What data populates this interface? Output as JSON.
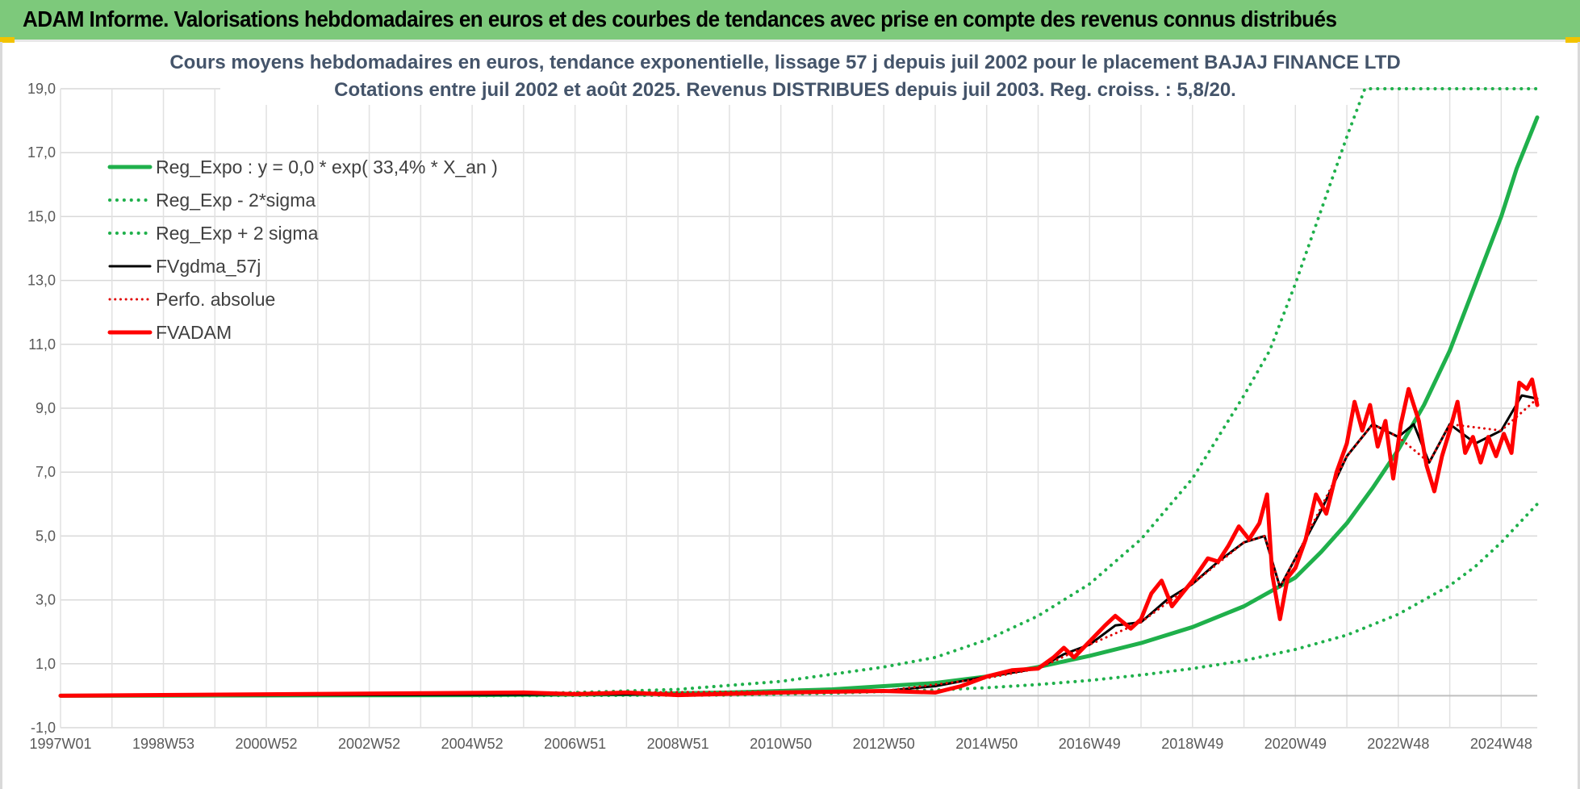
{
  "header": {
    "title": "ADAM Informe. Valorisations hebdomadaires en euros et des courbes de tendances avec prise en compte des revenus connus distribués",
    "background": "#7dc97b"
  },
  "chart_data": {
    "type": "line",
    "title_lines": [
      "Cours moyens hebdomadaires en euros, tendance exponentielle, lissage 57 j depuis juil 2002 pour le placement BAJAJ FINANCE LTD",
      "Cotations entre juil 2002 et août 2025. Revenus DISTRIBUES depuis juil 2003. Reg. croiss. : 5,8/20."
    ],
    "xlabel": "",
    "ylabel": "",
    "ylim": [
      -1,
      19
    ],
    "xlim": [
      1997.0,
      2025.7
    ],
    "y_ticks": [
      "-1,0",
      "1,0",
      "3,0",
      "5,0",
      "7,0",
      "9,0",
      "11,0",
      "13,0",
      "15,0",
      "17,0",
      "19,0"
    ],
    "x_ticks": [
      {
        "label": "1997W01",
        "x": 1997.0
      },
      {
        "label": "1998W53",
        "x": 1999.0
      },
      {
        "label": "2000W52",
        "x": 2001.0
      },
      {
        "label": "2002W52",
        "x": 2003.0
      },
      {
        "label": "2004W52",
        "x": 2005.0
      },
      {
        "label": "2006W51",
        "x": 2007.0
      },
      {
        "label": "2008W51",
        "x": 2009.0
      },
      {
        "label": "2010W50",
        "x": 2011.0
      },
      {
        "label": "2012W50",
        "x": 2013.0
      },
      {
        "label": "2014W50",
        "x": 2015.0
      },
      {
        "label": "2016W49",
        "x": 2017.0
      },
      {
        "label": "2018W49",
        "x": 2019.0
      },
      {
        "label": "2020W49",
        "x": 2021.0
      },
      {
        "label": "2022W48",
        "x": 2023.0
      },
      {
        "label": "2024W48",
        "x": 2025.0
      }
    ],
    "grid": true,
    "legend_position": "top-left",
    "series": [
      {
        "name": "Reg_Expo : y = 0,0 * exp( 33,4% *  X_an )",
        "color": "#1fb04b",
        "style": "solid",
        "width": 5,
        "points": [
          [
            1997.0,
            0
          ],
          [
            2005.0,
            0.02
          ],
          [
            2008.0,
            0.05
          ],
          [
            2010.0,
            0.1
          ],
          [
            2012.0,
            0.2
          ],
          [
            2013.0,
            0.3
          ],
          [
            2014.0,
            0.4
          ],
          [
            2015.0,
            0.6
          ],
          [
            2016.0,
            0.9
          ],
          [
            2017.0,
            1.25
          ],
          [
            2018.0,
            1.65
          ],
          [
            2019.0,
            2.15
          ],
          [
            2020.0,
            2.8
          ],
          [
            2021.0,
            3.7
          ],
          [
            2021.5,
            4.5
          ],
          [
            2022.0,
            5.4
          ],
          [
            2022.5,
            6.5
          ],
          [
            2023.0,
            7.7
          ],
          [
            2023.5,
            9.1
          ],
          [
            2024.0,
            10.8
          ],
          [
            2024.5,
            12.9
          ],
          [
            2025.0,
            15.0
          ],
          [
            2025.3,
            16.5
          ],
          [
            2025.7,
            18.1
          ]
        ]
      },
      {
        "name": "Reg_Exp - 2*sigma",
        "color": "#1fb04b",
        "style": "dotted",
        "width": 4,
        "points": [
          [
            2005.0,
            0
          ],
          [
            2010.0,
            0.02
          ],
          [
            2012.0,
            0.08
          ],
          [
            2014.0,
            0.18
          ],
          [
            2015.0,
            0.25
          ],
          [
            2016.0,
            0.35
          ],
          [
            2017.0,
            0.48
          ],
          [
            2018.0,
            0.65
          ],
          [
            2019.0,
            0.85
          ],
          [
            2020.0,
            1.1
          ],
          [
            2021.0,
            1.45
          ],
          [
            2022.0,
            1.9
          ],
          [
            2023.0,
            2.55
          ],
          [
            2024.0,
            3.45
          ],
          [
            2024.5,
            4.05
          ],
          [
            2025.0,
            4.8
          ],
          [
            2025.7,
            6.0
          ]
        ]
      },
      {
        "name": "Reg_Exp + 2 sigma",
        "color": "#1fb04b",
        "style": "dotted",
        "width": 4,
        "points": [
          [
            2003.0,
            0.03
          ],
          [
            2005.0,
            0.05
          ],
          [
            2007.0,
            0.1
          ],
          [
            2009.0,
            0.2
          ],
          [
            2011.0,
            0.45
          ],
          [
            2013.0,
            0.9
          ],
          [
            2014.0,
            1.2
          ],
          [
            2015.0,
            1.75
          ],
          [
            2016.0,
            2.5
          ],
          [
            2017.0,
            3.5
          ],
          [
            2018.0,
            4.9
          ],
          [
            2019.0,
            6.8
          ],
          [
            2020.0,
            9.4
          ],
          [
            2020.5,
            10.8
          ],
          [
            2021.0,
            12.9
          ],
          [
            2021.5,
            15.2
          ],
          [
            2022.0,
            17.5
          ],
          [
            2022.35,
            19.0
          ],
          [
            2025.7,
            19.0
          ]
        ]
      },
      {
        "name": "FVgdma_57j",
        "color": "#000000",
        "style": "solid",
        "width": 3,
        "points": [
          [
            1997.0,
            0
          ],
          [
            2010.0,
            0.05
          ],
          [
            2013.0,
            0.15
          ],
          [
            2014.0,
            0.3
          ],
          [
            2015.0,
            0.6
          ],
          [
            2016.0,
            0.85
          ],
          [
            2016.5,
            1.3
          ],
          [
            2017.0,
            1.6
          ],
          [
            2017.5,
            2.2
          ],
          [
            2018.0,
            2.3
          ],
          [
            2018.5,
            3.0
          ],
          [
            2019.0,
            3.5
          ],
          [
            2019.5,
            4.2
          ],
          [
            2020.0,
            4.8
          ],
          [
            2020.4,
            5.0
          ],
          [
            2020.7,
            3.4
          ],
          [
            2021.0,
            4.3
          ],
          [
            2021.5,
            5.8
          ],
          [
            2022.0,
            7.5
          ],
          [
            2022.5,
            8.5
          ],
          [
            2023.0,
            8.1
          ],
          [
            2023.3,
            8.5
          ],
          [
            2023.6,
            7.3
          ],
          [
            2024.0,
            8.5
          ],
          [
            2024.5,
            7.9
          ],
          [
            2025.0,
            8.3
          ],
          [
            2025.4,
            9.4
          ],
          [
            2025.7,
            9.3
          ]
        ]
      },
      {
        "name": "Perfo. absolue",
        "color": "#e00000",
        "style": "dotted",
        "width": 3,
        "points": [
          [
            1997.0,
            0
          ],
          [
            2013.0,
            0.15
          ],
          [
            2015.0,
            0.55
          ],
          [
            2016.0,
            0.85
          ],
          [
            2017.0,
            1.6
          ],
          [
            2018.0,
            2.3
          ],
          [
            2019.0,
            3.5
          ],
          [
            2020.0,
            4.8
          ],
          [
            2020.4,
            5.0
          ],
          [
            2020.7,
            3.4
          ],
          [
            2021.0,
            4.3
          ],
          [
            2022.0,
            7.5
          ],
          [
            2022.5,
            8.5
          ],
          [
            2023.0,
            8.1
          ],
          [
            2023.6,
            7.3
          ],
          [
            2024.0,
            8.5
          ],
          [
            2025.0,
            8.3
          ],
          [
            2025.7,
            9.3
          ]
        ]
      },
      {
        "name": "FVADAM",
        "color": "#ff0000",
        "style": "solid",
        "width": 5,
        "points": [
          [
            1997.0,
            0
          ],
          [
            2006.0,
            0.1
          ],
          [
            2007.0,
            0.05
          ],
          [
            2008.0,
            0.1
          ],
          [
            2009.0,
            0.02
          ],
          [
            2011.0,
            0.1
          ],
          [
            2013.0,
            0.15
          ],
          [
            2014.0,
            0.1
          ],
          [
            2014.5,
            0.3
          ],
          [
            2015.0,
            0.6
          ],
          [
            2015.5,
            0.8
          ],
          [
            2016.0,
            0.85
          ],
          [
            2016.3,
            1.2
          ],
          [
            2016.5,
            1.5
          ],
          [
            2016.7,
            1.2
          ],
          [
            2017.0,
            1.7
          ],
          [
            2017.3,
            2.2
          ],
          [
            2017.5,
            2.5
          ],
          [
            2017.8,
            2.1
          ],
          [
            2018.0,
            2.4
          ],
          [
            2018.2,
            3.2
          ],
          [
            2018.4,
            3.6
          ],
          [
            2018.6,
            2.8
          ],
          [
            2018.8,
            3.2
          ],
          [
            2019.0,
            3.6
          ],
          [
            2019.3,
            4.3
          ],
          [
            2019.5,
            4.2
          ],
          [
            2019.7,
            4.7
          ],
          [
            2019.9,
            5.3
          ],
          [
            2020.1,
            4.9
          ],
          [
            2020.3,
            5.4
          ],
          [
            2020.45,
            6.3
          ],
          [
            2020.55,
            3.8
          ],
          [
            2020.7,
            2.4
          ],
          [
            2020.85,
            3.7
          ],
          [
            2021.0,
            4.0
          ],
          [
            2021.2,
            4.9
          ],
          [
            2021.4,
            6.3
          ],
          [
            2021.6,
            5.7
          ],
          [
            2021.8,
            7.0
          ],
          [
            2022.0,
            7.9
          ],
          [
            2022.15,
            9.2
          ],
          [
            2022.3,
            8.3
          ],
          [
            2022.45,
            9.1
          ],
          [
            2022.6,
            7.8
          ],
          [
            2022.75,
            8.6
          ],
          [
            2022.9,
            6.8
          ],
          [
            2023.05,
            8.5
          ],
          [
            2023.2,
            9.6
          ],
          [
            2023.4,
            8.6
          ],
          [
            2023.55,
            7.2
          ],
          [
            2023.7,
            6.4
          ],
          [
            2023.85,
            7.5
          ],
          [
            2024.0,
            8.3
          ],
          [
            2024.15,
            9.2
          ],
          [
            2024.3,
            7.6
          ],
          [
            2024.45,
            8.1
          ],
          [
            2024.6,
            7.3
          ],
          [
            2024.75,
            8.1
          ],
          [
            2024.9,
            7.5
          ],
          [
            2025.05,
            8.2
          ],
          [
            2025.2,
            7.6
          ],
          [
            2025.35,
            9.8
          ],
          [
            2025.5,
            9.6
          ],
          [
            2025.6,
            9.9
          ],
          [
            2025.7,
            9.1
          ]
        ]
      }
    ]
  }
}
